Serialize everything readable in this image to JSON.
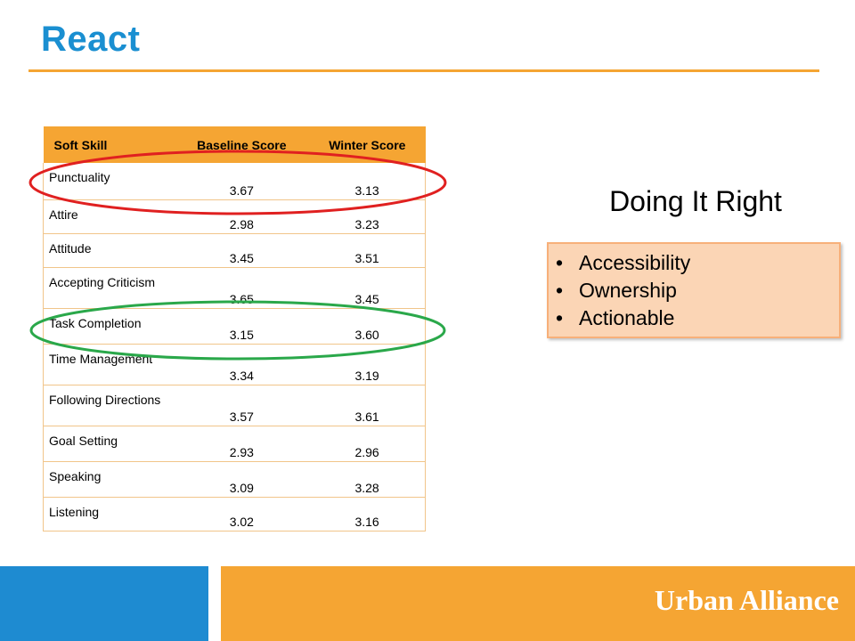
{
  "slide": {
    "title": "React"
  },
  "table": {
    "headers": [
      "Soft Skill",
      "Baseline Score",
      "Winter Score"
    ],
    "rows": [
      {
        "skill": "Punctuality",
        "baseline": "3.67",
        "winter": "3.13"
      },
      {
        "skill": "Attire",
        "baseline": "2.98",
        "winter": "3.23"
      },
      {
        "skill": "Attitude",
        "baseline": "3.45",
        "winter": "3.51"
      },
      {
        "skill": "Accepting Criticism",
        "baseline": "3.65",
        "winter": "3.45"
      },
      {
        "skill": "Task Completion",
        "baseline": "3.15",
        "winter": "3.60"
      },
      {
        "skill": "Time Management",
        "baseline": "3.34",
        "winter": "3.19"
      },
      {
        "skill": "Following Directions",
        "baseline": "3.57",
        "winter": "3.61"
      },
      {
        "skill": "Goal Setting",
        "baseline": "2.93",
        "winter": "2.96"
      },
      {
        "skill": "Speaking",
        "baseline": "3.09",
        "winter": "3.28"
      },
      {
        "skill": "Listening",
        "baseline": "3.02",
        "winter": "3.16"
      }
    ]
  },
  "highlight_colors": {
    "red_ellipse": "#e02020",
    "green_ellipse": "#2aa84a"
  },
  "side": {
    "heading": "Doing It Right",
    "bullets": [
      "Accessibility",
      "Ownership",
      "Actionable"
    ]
  },
  "footer": {
    "brand": "Urban Alliance"
  },
  "colors": {
    "accent_blue": "#1a8fd1",
    "accent_orange": "#f5a533",
    "box_fill": "#fbd5b5"
  }
}
